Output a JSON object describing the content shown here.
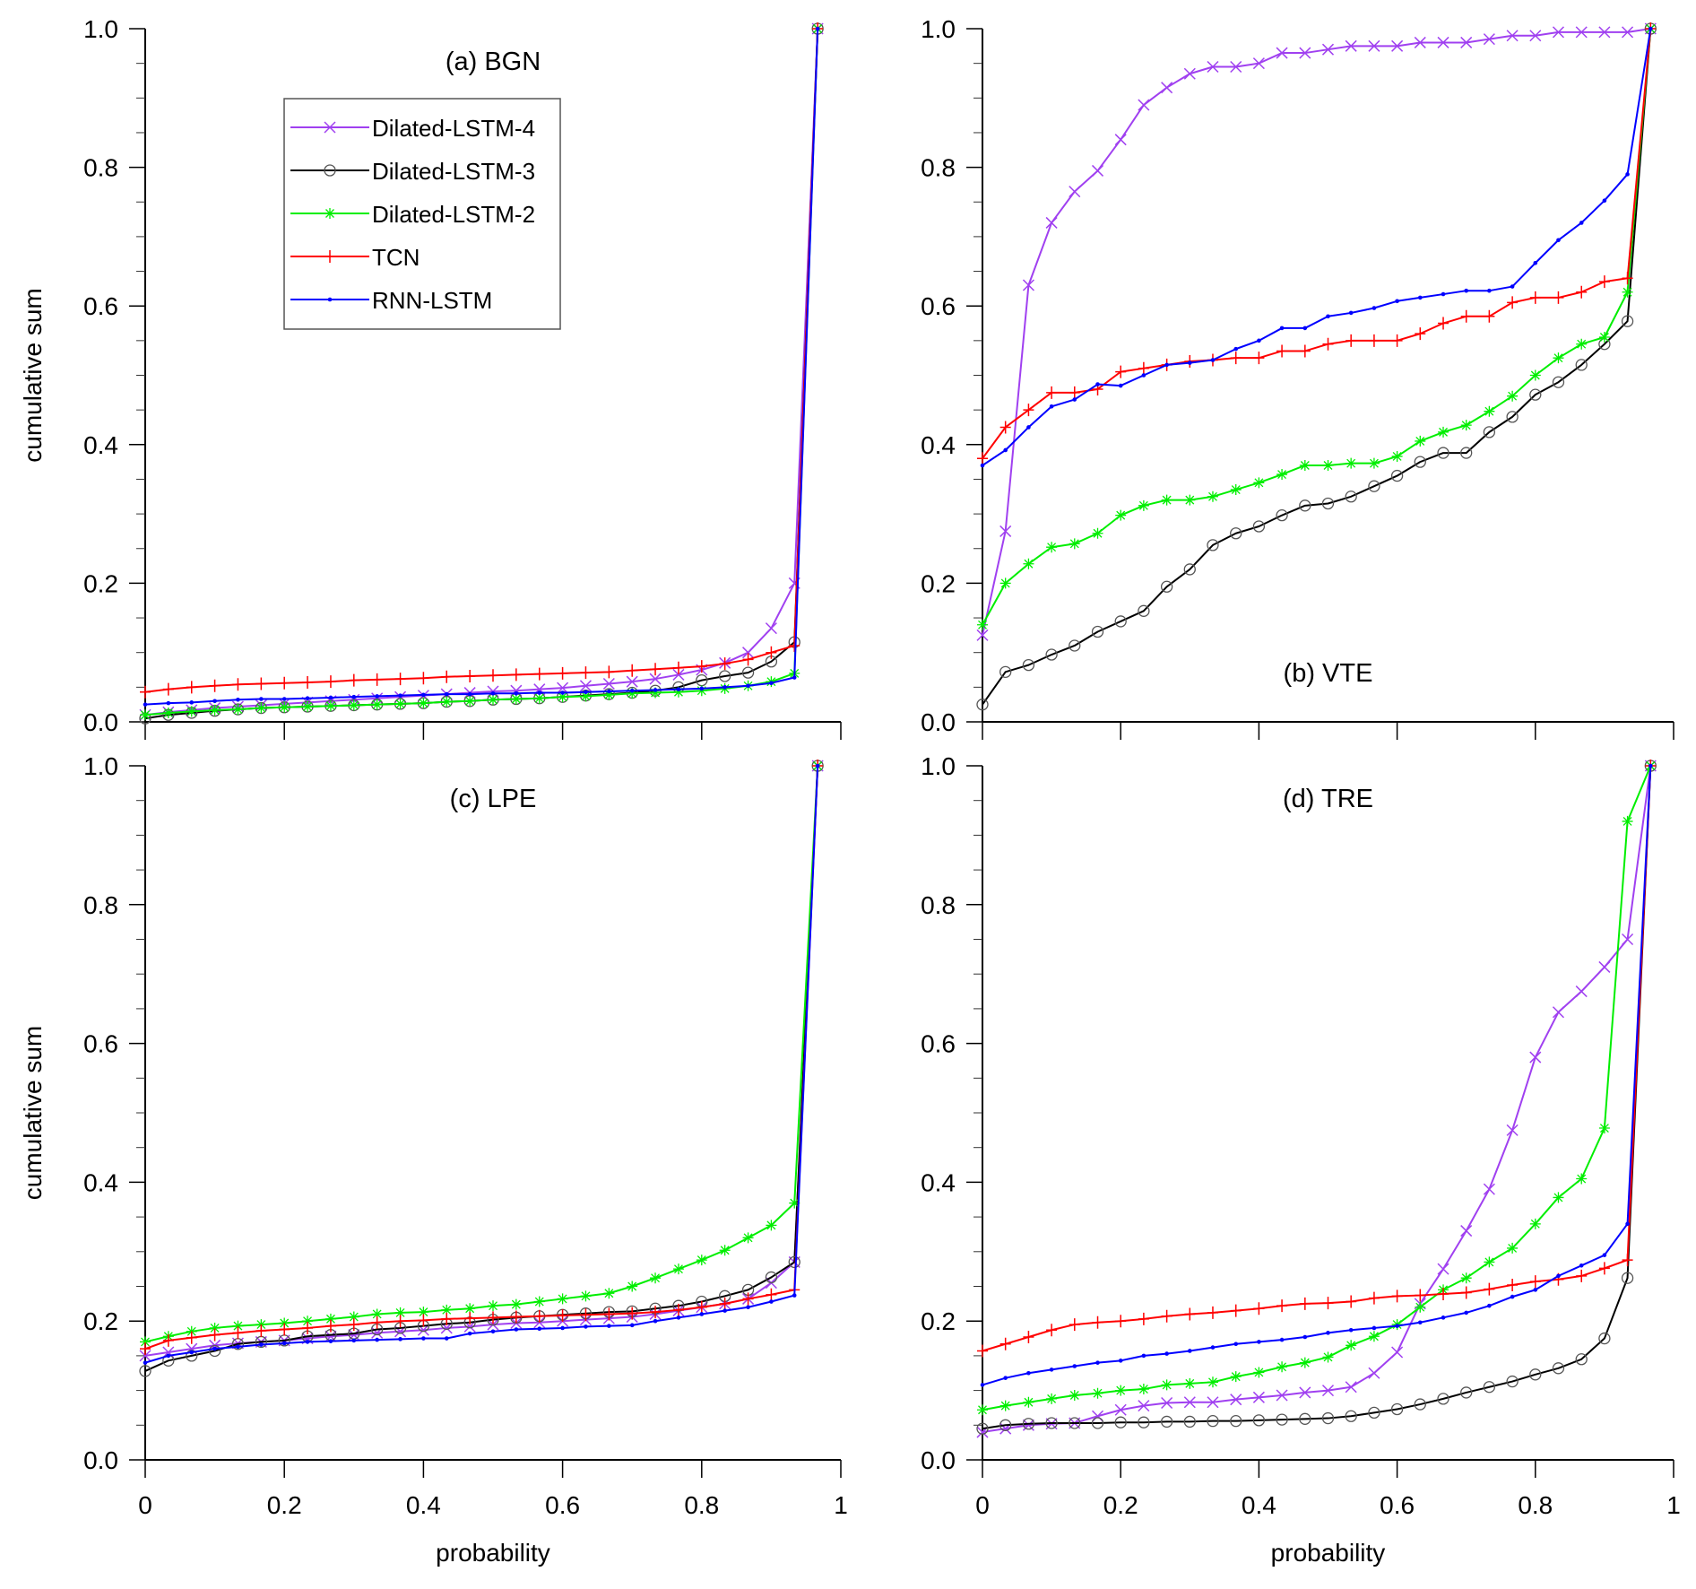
{
  "chart_data": {
    "type": "line",
    "layout": "2x2 grid",
    "x": [
      0,
      0.0333,
      0.0667,
      0.1,
      0.1333,
      0.1667,
      0.2,
      0.2333,
      0.2667,
      0.3,
      0.3333,
      0.3667,
      0.4,
      0.4333,
      0.4667,
      0.5,
      0.5333,
      0.5667,
      0.6,
      0.6333,
      0.6667,
      0.7,
      0.7333,
      0.7667,
      0.8,
      0.8333,
      0.8667,
      0.9,
      0.9333,
      0.9667
    ],
    "xlim": [
      0,
      1
    ],
    "ylim": [
      0,
      1
    ],
    "xticks": [
      "0",
      "0.2",
      "0.4",
      "0.6",
      "0.8",
      "1"
    ],
    "yticks": [
      "0.0",
      "0.2",
      "0.4",
      "0.6",
      "0.8",
      "1.0"
    ],
    "legend": {
      "placement": "top-left of panel (a)",
      "entries": [
        {
          "name": "Dilated-LSTM-4",
          "color": "#a040f0",
          "marker": "x"
        },
        {
          "name": "Dilated-LSTM-3",
          "color": "#000000",
          "marker": "circle"
        },
        {
          "name": "Dilated-LSTM-2",
          "color": "#00ee00",
          "marker": "asterisk"
        },
        {
          "name": "TCN",
          "color": "#ff0000",
          "marker": "plus"
        },
        {
          "name": "RNN-LSTM",
          "color": "#0000ff",
          "marker": "dot"
        }
      ]
    },
    "panels": [
      {
        "id": "a",
        "title": "(a) BGN",
        "xlabel": "",
        "ylabel": "cumulative sum",
        "title_position": "top",
        "series": [
          {
            "name": "Dilated-LSTM-4",
            "values": [
              0.01,
              0.014,
              0.017,
              0.02,
              0.022,
              0.024,
              0.026,
              0.028,
              0.03,
              0.032,
              0.034,
              0.036,
              0.038,
              0.04,
              0.042,
              0.044,
              0.045,
              0.047,
              0.049,
              0.052,
              0.055,
              0.058,
              0.062,
              0.068,
              0.075,
              0.085,
              0.1,
              0.135,
              0.2,
              1.0
            ]
          },
          {
            "name": "Dilated-LSTM-3",
            "values": [
              0.005,
              0.01,
              0.013,
              0.016,
              0.018,
              0.02,
              0.021,
              0.022,
              0.023,
              0.024,
              0.025,
              0.026,
              0.027,
              0.029,
              0.03,
              0.032,
              0.033,
              0.034,
              0.036,
              0.038,
              0.04,
              0.042,
              0.045,
              0.05,
              0.06,
              0.066,
              0.071,
              0.087,
              0.115,
              1.0
            ]
          },
          {
            "name": "Dilated-LSTM-2",
            "values": [
              0.01,
              0.013,
              0.015,
              0.017,
              0.018,
              0.02,
              0.021,
              0.022,
              0.023,
              0.024,
              0.025,
              0.026,
              0.027,
              0.029,
              0.03,
              0.032,
              0.033,
              0.034,
              0.036,
              0.037,
              0.039,
              0.041,
              0.042,
              0.043,
              0.045,
              0.048,
              0.052,
              0.058,
              0.07,
              1.0
            ]
          },
          {
            "name": "TCN",
            "values": [
              0.043,
              0.047,
              0.05,
              0.052,
              0.054,
              0.055,
              0.056,
              0.057,
              0.058,
              0.06,
              0.061,
              0.062,
              0.063,
              0.065,
              0.066,
              0.067,
              0.068,
              0.069,
              0.07,
              0.071,
              0.072,
              0.074,
              0.076,
              0.078,
              0.08,
              0.084,
              0.09,
              0.1,
              0.11,
              1.0
            ]
          },
          {
            "name": "RNN-LSTM",
            "values": [
              0.025,
              0.027,
              0.028,
              0.03,
              0.032,
              0.033,
              0.033,
              0.034,
              0.035,
              0.036,
              0.037,
              0.038,
              0.039,
              0.04,
              0.04,
              0.041,
              0.041,
              0.042,
              0.042,
              0.043,
              0.044,
              0.045,
              0.046,
              0.047,
              0.048,
              0.05,
              0.052,
              0.056,
              0.064,
              1.0
            ]
          }
        ]
      },
      {
        "id": "b",
        "title": "(b) VTE",
        "xlabel": "",
        "ylabel": "",
        "title_position": "bottom",
        "series": [
          {
            "name": "Dilated-LSTM-4",
            "values": [
              0.125,
              0.275,
              0.63,
              0.72,
              0.765,
              0.795,
              0.84,
              0.89,
              0.915,
              0.935,
              0.945,
              0.945,
              0.95,
              0.965,
              0.965,
              0.97,
              0.975,
              0.975,
              0.975,
              0.98,
              0.98,
              0.98,
              0.985,
              0.99,
              0.99,
              0.995,
              0.995,
              0.995,
              0.995,
              1.0
            ]
          },
          {
            "name": "Dilated-LSTM-3",
            "values": [
              0.025,
              0.072,
              0.082,
              0.097,
              0.11,
              0.13,
              0.145,
              0.16,
              0.195,
              0.22,
              0.255,
              0.272,
              0.282,
              0.298,
              0.312,
              0.315,
              0.325,
              0.34,
              0.355,
              0.375,
              0.388,
              0.388,
              0.418,
              0.44,
              0.472,
              0.49,
              0.515,
              0.545,
              0.578,
              1.0
            ]
          },
          {
            "name": "Dilated-LSTM-2",
            "values": [
              0.14,
              0.2,
              0.228,
              0.252,
              0.257,
              0.272,
              0.298,
              0.312,
              0.32,
              0.32,
              0.325,
              0.335,
              0.345,
              0.357,
              0.37,
              0.37,
              0.373,
              0.373,
              0.383,
              0.405,
              0.418,
              0.428,
              0.448,
              0.47,
              0.5,
              0.525,
              0.545,
              0.555,
              0.62,
              1.0
            ]
          },
          {
            "name": "TCN",
            "values": [
              0.38,
              0.425,
              0.45,
              0.475,
              0.475,
              0.48,
              0.505,
              0.51,
              0.515,
              0.52,
              0.522,
              0.525,
              0.525,
              0.535,
              0.535,
              0.545,
              0.55,
              0.55,
              0.55,
              0.56,
              0.575,
              0.585,
              0.585,
              0.605,
              0.612,
              0.612,
              0.62,
              0.635,
              0.64,
              1.0
            ]
          },
          {
            "name": "RNN-LSTM",
            "values": [
              0.37,
              0.392,
              0.425,
              0.455,
              0.465,
              0.487,
              0.485,
              0.5,
              0.515,
              0.518,
              0.522,
              0.538,
              0.55,
              0.568,
              0.568,
              0.585,
              0.59,
              0.597,
              0.607,
              0.612,
              0.617,
              0.622,
              0.622,
              0.628,
              0.662,
              0.695,
              0.72,
              0.752,
              0.79,
              1.0
            ]
          }
        ]
      },
      {
        "id": "c",
        "title": "(c) LPE",
        "xlabel": "probability",
        "ylabel": "cumulative sum",
        "title_position": "top",
        "series": [
          {
            "name": "Dilated-LSTM-4",
            "values": [
              0.15,
              0.155,
              0.16,
              0.165,
              0.168,
              0.17,
              0.172,
              0.175,
              0.178,
              0.18,
              0.183,
              0.185,
              0.187,
              0.19,
              0.192,
              0.195,
              0.197,
              0.198,
              0.2,
              0.202,
              0.204,
              0.206,
              0.21,
              0.215,
              0.22,
              0.225,
              0.232,
              0.255,
              0.285,
              1.0
            ]
          },
          {
            "name": "Dilated-LSTM-3",
            "values": [
              0.128,
              0.143,
              0.15,
              0.157,
              0.167,
              0.17,
              0.172,
              0.178,
              0.18,
              0.182,
              0.188,
              0.19,
              0.193,
              0.196,
              0.198,
              0.202,
              0.205,
              0.207,
              0.209,
              0.211,
              0.213,
              0.214,
              0.218,
              0.222,
              0.228,
              0.236,
              0.245,
              0.263,
              0.285,
              1.0
            ]
          },
          {
            "name": "Dilated-LSTM-2",
            "values": [
              0.17,
              0.178,
              0.185,
              0.19,
              0.193,
              0.195,
              0.197,
              0.2,
              0.203,
              0.206,
              0.21,
              0.212,
              0.213,
              0.216,
              0.218,
              0.222,
              0.224,
              0.228,
              0.232,
              0.236,
              0.24,
              0.25,
              0.262,
              0.275,
              0.288,
              0.302,
              0.32,
              0.338,
              0.37,
              1.0
            ]
          },
          {
            "name": "TCN",
            "values": [
              0.16,
              0.172,
              0.176,
              0.18,
              0.183,
              0.186,
              0.188,
              0.19,
              0.193,
              0.195,
              0.198,
              0.2,
              0.201,
              0.203,
              0.204,
              0.205,
              0.206,
              0.207,
              0.208,
              0.209,
              0.21,
              0.211,
              0.213,
              0.216,
              0.22,
              0.225,
              0.232,
              0.238,
              0.245,
              1.0
            ]
          },
          {
            "name": "RNN-LSTM",
            "values": [
              0.14,
              0.15,
              0.155,
              0.16,
              0.163,
              0.166,
              0.168,
              0.17,
              0.171,
              0.172,
              0.173,
              0.174,
              0.175,
              0.175,
              0.182,
              0.185,
              0.188,
              0.189,
              0.19,
              0.192,
              0.193,
              0.194,
              0.2,
              0.205,
              0.21,
              0.215,
              0.22,
              0.228,
              0.237,
              1.0
            ]
          }
        ]
      },
      {
        "id": "d",
        "title": "(d) TRE",
        "xlabel": "probability",
        "ylabel": "",
        "title_position": "top",
        "series": [
          {
            "name": "Dilated-LSTM-4",
            "values": [
              0.04,
              0.045,
              0.05,
              0.052,
              0.053,
              0.063,
              0.072,
              0.078,
              0.082,
              0.083,
              0.083,
              0.087,
              0.09,
              0.093,
              0.097,
              0.1,
              0.105,
              0.125,
              0.155,
              0.225,
              0.275,
              0.33,
              0.39,
              0.475,
              0.58,
              0.645,
              0.675,
              0.71,
              0.75,
              1.0
            ]
          },
          {
            "name": "Dilated-LSTM-3",
            "values": [
              0.045,
              0.05,
              0.052,
              0.053,
              0.053,
              0.053,
              0.054,
              0.054,
              0.055,
              0.055,
              0.056,
              0.056,
              0.057,
              0.058,
              0.059,
              0.06,
              0.063,
              0.068,
              0.073,
              0.08,
              0.088,
              0.097,
              0.105,
              0.113,
              0.123,
              0.132,
              0.145,
              0.175,
              0.262,
              1.0
            ]
          },
          {
            "name": "Dilated-LSTM-2",
            "values": [
              0.072,
              0.078,
              0.083,
              0.088,
              0.093,
              0.096,
              0.1,
              0.102,
              0.108,
              0.11,
              0.112,
              0.12,
              0.126,
              0.134,
              0.14,
              0.148,
              0.165,
              0.178,
              0.195,
              0.22,
              0.245,
              0.262,
              0.285,
              0.305,
              0.34,
              0.378,
              0.405,
              0.478,
              0.92,
              1.0
            ]
          },
          {
            "name": "TCN",
            "values": [
              0.157,
              0.167,
              0.177,
              0.187,
              0.195,
              0.198,
              0.2,
              0.203,
              0.207,
              0.21,
              0.212,
              0.215,
              0.218,
              0.222,
              0.225,
              0.226,
              0.228,
              0.233,
              0.236,
              0.237,
              0.239,
              0.241,
              0.246,
              0.252,
              0.257,
              0.26,
              0.265,
              0.276,
              0.288,
              1.0
            ]
          },
          {
            "name": "RNN-LSTM",
            "values": [
              0.108,
              0.118,
              0.125,
              0.13,
              0.135,
              0.14,
              0.143,
              0.15,
              0.153,
              0.157,
              0.162,
              0.167,
              0.17,
              0.173,
              0.177,
              0.183,
              0.187,
              0.19,
              0.193,
              0.198,
              0.205,
              0.212,
              0.222,
              0.235,
              0.245,
              0.265,
              0.28,
              0.295,
              0.34,
              1.0
            ]
          }
        ]
      }
    ]
  }
}
